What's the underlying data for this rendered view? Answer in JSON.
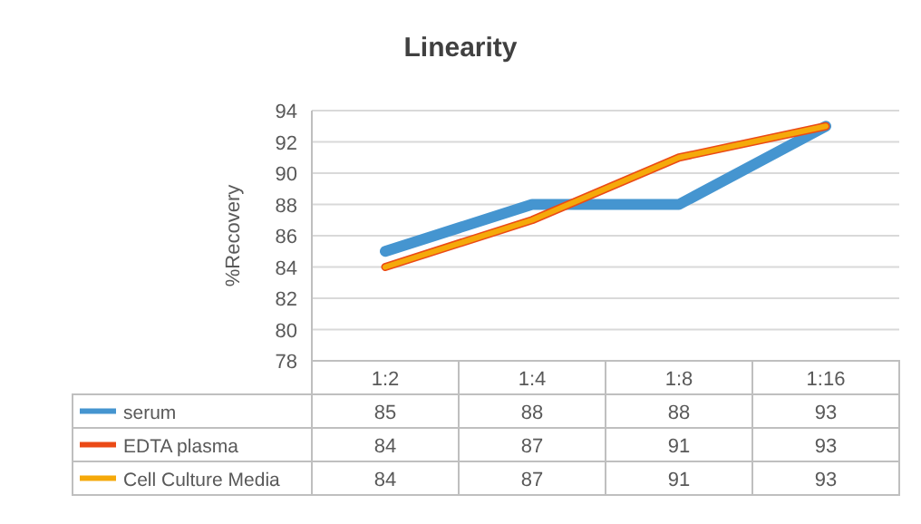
{
  "chart_data": {
    "type": "line",
    "title": "Linearity",
    "ylabel": "%Recovery",
    "categories": [
      "1:2",
      "1:4",
      "1:8",
      "1:16"
    ],
    "series": [
      {
        "name": "serum",
        "color": "#4595d0",
        "values": [
          85,
          88,
          88,
          93
        ]
      },
      {
        "name": "EDTA plasma",
        "color": "#eb4a16",
        "values": [
          84,
          87,
          91,
          93
        ]
      },
      {
        "name": "Cell Culture Media",
        "color": "#f5a90a",
        "values": [
          84,
          87,
          91,
          93
        ]
      }
    ],
    "ylim": [
      78,
      94
    ],
    "yticks": [
      78,
      80,
      82,
      84,
      86,
      88,
      90,
      92,
      94
    ],
    "grid": "y",
    "legend": "bottom",
    "data_labels": true,
    "line_style": "solid",
    "marker": "none"
  }
}
